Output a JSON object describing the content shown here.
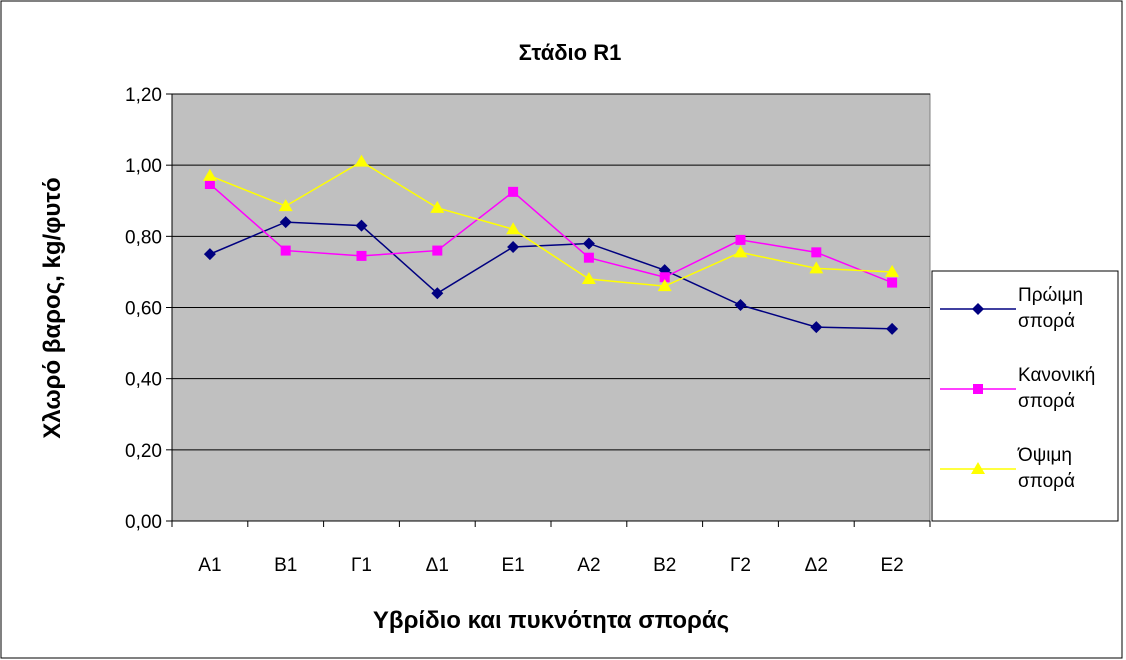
{
  "chart_data": {
    "type": "line",
    "title": "Στάδιο R1",
    "y_label": "Χλωρό βαρος, kg/φυτό",
    "x_label": "Υβρίδιο και πυκνότητα σποράς",
    "categories": [
      "Α1",
      "Β1",
      "Γ1",
      "Δ1",
      "Ε1",
      "Α2",
      "Β2",
      "Γ2",
      "Δ2",
      "Ε2"
    ],
    "series": [
      {
        "name": "Πρώιμη σπορά",
        "color": "#000080",
        "marker": "diamond",
        "values": [
          0.75,
          0.84,
          0.83,
          0.64,
          0.77,
          0.78,
          0.705,
          0.607,
          0.545,
          0.54
        ]
      },
      {
        "name": "Κανονική σπορά",
        "color": "#ff00ff",
        "marker": "square",
        "values": [
          0.947,
          0.76,
          0.745,
          0.76,
          0.925,
          0.74,
          0.685,
          0.79,
          0.755,
          0.67
        ]
      },
      {
        "name": "Όψιμη σπορά",
        "color": "#ffff00",
        "marker": "triangle",
        "values": [
          0.97,
          0.885,
          1.01,
          0.88,
          0.82,
          0.68,
          0.66,
          0.755,
          0.71,
          0.7
        ]
      }
    ],
    "ylim": [
      0,
      1.2
    ],
    "yticks": [
      {
        "value": 0,
        "label": "0,00"
      },
      {
        "value": 0.2,
        "label": "0,20"
      },
      {
        "value": 0.4,
        "label": "0,40"
      },
      {
        "value": 0.6,
        "label": "0,60"
      },
      {
        "value": 0.8,
        "label": "0,80"
      },
      {
        "value": 1.0,
        "label": "1,00"
      },
      {
        "value": 1.2,
        "label": "1,20"
      }
    ],
    "grid": true,
    "legend": "right",
    "plot_background": "#c0c0c0"
  }
}
